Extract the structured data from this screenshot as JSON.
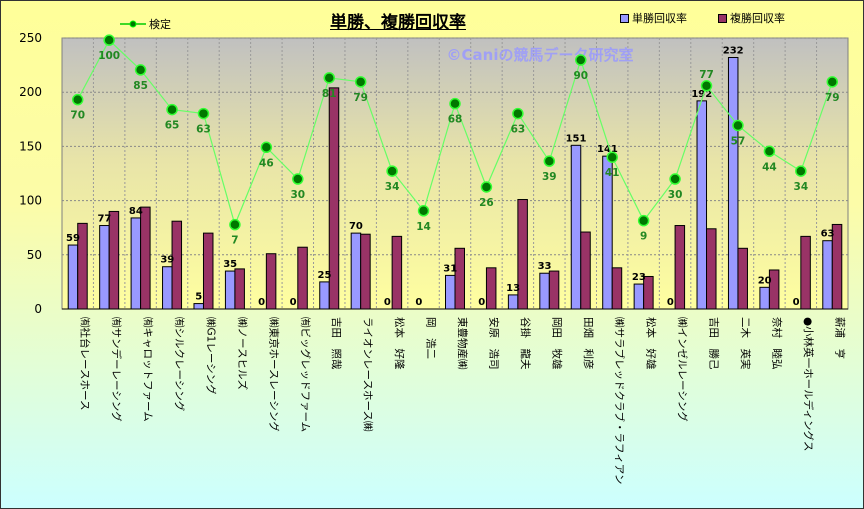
{
  "chart_data": {
    "type": "bar",
    "title": "単勝、複勝回収率",
    "watermark": "©Caniの競馬データ研究室",
    "ylim": [
      0,
      250
    ],
    "yticks": [
      0,
      50,
      100,
      150,
      200,
      250
    ],
    "grid": true,
    "legend_placement": "top",
    "categories": [
      "㈲社台レースホース",
      "㈲サンデーレーシング",
      "㈲キャロットファーム",
      "㈲シルクレーシング",
      "㈱G1レーシング",
      "㈱ノースヒルズ",
      "㈱東京ホースレーシング",
      "㈲ビッグレッドファーム",
      "吉田　照哉",
      "ライオンレースホース㈱",
      "松本　好隆",
      "岡　浩二",
      "東豊物産㈱",
      "安原　浩司",
      "谷掛　龍夫",
      "岡田　牧雄",
      "田畑　利彦",
      "㈱サラブレッドクラブ・ラフィアン",
      "松本　好雄",
      "㈱インゼルレーシング",
      "吉田　勝己",
      "二木　英実",
      "奈村　睦弘",
      "●小林英一ホールディングス",
      "薪浦　亨"
    ],
    "series": [
      {
        "name": "単勝回収率",
        "type": "bar",
        "color": "#9999ff",
        "values": [
          59,
          77,
          84,
          39,
          5,
          35,
          0,
          0,
          25,
          70,
          0,
          0,
          31,
          0,
          13,
          33,
          151,
          141,
          23,
          0,
          192,
          232,
          20,
          0,
          63
        ]
      },
      {
        "name": "複勝回収率",
        "type": "bar",
        "color": "#993366",
        "values": [
          79,
          90,
          94,
          81,
          70,
          37,
          51,
          57,
          204,
          69,
          67,
          0,
          56,
          38,
          101,
          35,
          71,
          38,
          30,
          77,
          74,
          56,
          36,
          67,
          78
        ]
      },
      {
        "name": "検定",
        "type": "line",
        "color": "#00cc00",
        "values": [
          70,
          100,
          85,
          65,
          63,
          7,
          46,
          30,
          81,
          79,
          34,
          14,
          68,
          26,
          63,
          39,
          90,
          41,
          9,
          30,
          77,
          57,
          44,
          34,
          79
        ]
      }
    ]
  }
}
